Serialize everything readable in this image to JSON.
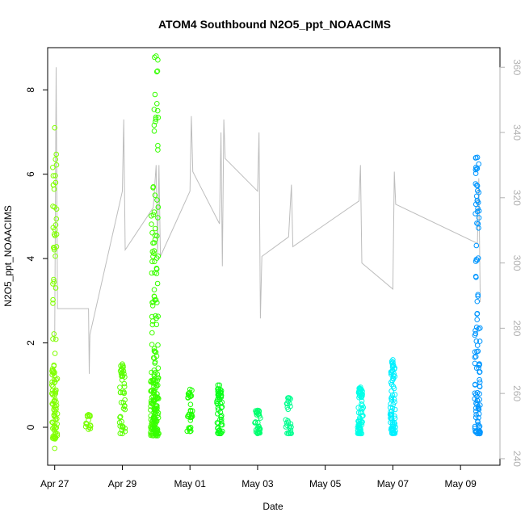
{
  "chart_data": {
    "type": "scatter",
    "title": "ATOM4 Southbound N2O5_ppt_NOAACIMS",
    "xlabel": "Date",
    "ylabel": "N2O5_ppt_NOAACIMS",
    "xlim": [
      "2018-04-26T19:00",
      "2018-05-10T04:00"
    ],
    "ylim": [
      -0.9,
      9.0
    ],
    "y2lim": [
      238,
      366
    ],
    "x_ticks": [
      {
        "date": "2018-04-27",
        "label": "Apr 27"
      },
      {
        "date": "2018-04-29",
        "label": "Apr 29"
      },
      {
        "date": "2018-05-01",
        "label": "May 01"
      },
      {
        "date": "2018-05-03",
        "label": "May 03"
      },
      {
        "date": "2018-05-05",
        "label": "May 05"
      },
      {
        "date": "2018-05-07",
        "label": "May 07"
      },
      {
        "date": "2018-05-09",
        "label": "May 09"
      }
    ],
    "y_ticks": [
      0,
      2,
      4,
      6,
      8
    ],
    "y2_ticks": [
      240,
      260,
      280,
      300,
      320,
      340,
      360
    ],
    "grid": false,
    "series": [
      {
        "kind": "points",
        "clusters": [
          {
            "t": "2018-04-27T00:00",
            "color": "#80ff00",
            "vmin": -0.5,
            "vmax": 7.1,
            "dense": [
              -0.3,
              1.4
            ],
            "n": 110
          },
          {
            "t": "2018-04-28T00:00",
            "color": "#77ff00",
            "vmin": -0.05,
            "vmax": 0.3,
            "dense": [
              -0.05,
              0.25
            ],
            "n": 14
          },
          {
            "t": "2018-04-29T00:00",
            "color": "#5aff00",
            "vmin": -0.15,
            "vmax": 1.5,
            "dense": [
              -0.15,
              1.2
            ],
            "n": 45
          },
          {
            "t": "2018-04-29T22:00",
            "color": "#44ff00",
            "vmin": -0.2,
            "vmax": 5.7,
            "dense": [
              -0.2,
              1.2
            ],
            "n": 95
          },
          {
            "t": "2018-04-30T00:00",
            "color": "#36ff00",
            "vmin": -0.2,
            "vmax": 8.8,
            "dense": [
              -0.2,
              1.5
            ],
            "n": 120
          },
          {
            "t": "2018-05-01T00:00",
            "color": "#1eff00",
            "vmin": -0.1,
            "vmax": 0.9,
            "dense": [
              -0.1,
              0.6
            ],
            "n": 30
          },
          {
            "t": "2018-05-01T21:00",
            "color": "#0aff1a",
            "vmin": -0.15,
            "vmax": 1.0,
            "dense": [
              -0.15,
              0.7
            ],
            "n": 55
          },
          {
            "t": "2018-05-03T00:00",
            "color": "#00ff70",
            "vmin": -0.15,
            "vmax": 0.4,
            "dense": [
              -0.15,
              0.3
            ],
            "n": 35
          },
          {
            "t": "2018-05-03T22:00",
            "color": "#00ff90",
            "vmin": -0.15,
            "vmax": 0.7,
            "dense": [
              -0.15,
              0.4
            ],
            "n": 28
          },
          {
            "t": "2018-05-06T01:00",
            "color": "#00ffe8",
            "vmin": -0.15,
            "vmax": 0.95,
            "dense": [
              -0.15,
              0.7
            ],
            "n": 70
          },
          {
            "t": "2018-05-07T00:00",
            "color": "#00f0ff",
            "vmin": -0.15,
            "vmax": 1.6,
            "dense": [
              -0.15,
              0.8
            ],
            "n": 75
          },
          {
            "t": "2018-05-09T12:00",
            "color": "#0096ff",
            "vmin": -0.15,
            "vmax": 6.4,
            "dense": [
              -0.15,
              2.6
            ],
            "n": 110
          }
        ]
      },
      {
        "kind": "line",
        "axis": "right",
        "color": "#bdbdbd",
        "values": [
          [
            "2018-04-27T00:00",
            276
          ],
          [
            "2018-04-27T01:00",
            360
          ],
          [
            "2018-04-27T02:00",
            286
          ],
          [
            "2018-04-28T00:00",
            286
          ],
          [
            "2018-04-28T00:30",
            266
          ],
          [
            "2018-04-28T01:00",
            278
          ],
          [
            "2018-04-29T00:00",
            322
          ],
          [
            "2018-04-29T01:00",
            344
          ],
          [
            "2018-04-29T02:00",
            304
          ],
          [
            "2018-04-29T22:00",
            317
          ],
          [
            "2018-04-30T00:00",
            330
          ],
          [
            "2018-04-30T01:00",
            303
          ],
          [
            "2018-04-30T02:00",
            330
          ],
          [
            "2018-04-30T03:00",
            302
          ],
          [
            "2018-05-01T00:00",
            322
          ],
          [
            "2018-05-01T01:00",
            345
          ],
          [
            "2018-05-01T02:00",
            328
          ],
          [
            "2018-05-01T21:00",
            312
          ],
          [
            "2018-05-01T22:00",
            340
          ],
          [
            "2018-05-01T23:00",
            299
          ],
          [
            "2018-05-02T00:00",
            344
          ],
          [
            "2018-05-02T01:00",
            332
          ],
          [
            "2018-05-03T00:00",
            322
          ],
          [
            "2018-05-03T01:00",
            340
          ],
          [
            "2018-05-03T02:00",
            283
          ],
          [
            "2018-05-03T03:00",
            302
          ],
          [
            "2018-05-03T22:00",
            308
          ],
          [
            "2018-05-04T00:00",
            324
          ],
          [
            "2018-05-04T01:00",
            305
          ],
          [
            "2018-05-06T00:00",
            319
          ],
          [
            "2018-05-06T01:00",
            330
          ],
          [
            "2018-05-06T02:00",
            300
          ],
          [
            "2018-05-07T00:00",
            292
          ],
          [
            "2018-05-07T01:00",
            328
          ],
          [
            "2018-05-07T02:00",
            318
          ],
          [
            "2018-05-09T12:00",
            306
          ],
          [
            "2018-05-09T13:00",
            326
          ],
          [
            "2018-05-09T14:00",
            288
          ]
        ]
      }
    ]
  }
}
